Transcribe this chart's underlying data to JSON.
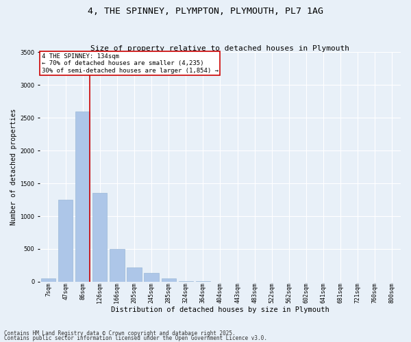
{
  "title_line1": "4, THE SPINNEY, PLYMPTON, PLYMOUTH, PL7 1AG",
  "title_line2": "Size of property relative to detached houses in Plymouth",
  "xlabel": "Distribution of detached houses by size in Plymouth",
  "ylabel": "Number of detached properties",
  "categories": [
    "7sqm",
    "47sqm",
    "86sqm",
    "126sqm",
    "166sqm",
    "205sqm",
    "245sqm",
    "285sqm",
    "324sqm",
    "364sqm",
    "404sqm",
    "443sqm",
    "483sqm",
    "522sqm",
    "562sqm",
    "602sqm",
    "641sqm",
    "681sqm",
    "721sqm",
    "760sqm",
    "800sqm"
  ],
  "values": [
    55,
    1250,
    2600,
    1360,
    500,
    220,
    140,
    55,
    15,
    5,
    3,
    2,
    1,
    0,
    0,
    0,
    0,
    0,
    0,
    0,
    0
  ],
  "bar_color": "#adc6e8",
  "bar_edge_color": "#9ab8d8",
  "vline_x_index": 2,
  "vline_color": "#cc0000",
  "ylim": [
    0,
    3500
  ],
  "yticks": [
    0,
    500,
    1000,
    1500,
    2000,
    2500,
    3000,
    3500
  ],
  "annotation_text": "4 THE SPINNEY: 134sqm\n← 70% of detached houses are smaller (4,235)\n30% of semi-detached houses are larger (1,854) →",
  "annotation_box_color": "#ffffff",
  "annotation_box_edge_color": "#cc0000",
  "footer_line1": "Contains HM Land Registry data © Crown copyright and database right 2025.",
  "footer_line2": "Contains public sector information licensed under the Open Government Licence v3.0.",
  "bg_color": "#e8f0f8",
  "plot_bg_color": "#e8f0f8",
  "grid_color": "#ffffff",
  "title1_fontsize": 9.5,
  "title2_fontsize": 8,
  "xlabel_fontsize": 7.5,
  "ylabel_fontsize": 7,
  "tick_fontsize": 6,
  "annotation_fontsize": 6.5,
  "footer_fontsize": 5.5
}
